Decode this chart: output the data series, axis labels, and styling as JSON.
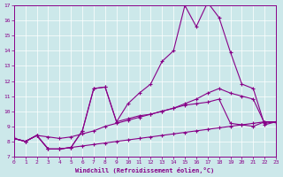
{
  "background_color": "#cce8ea",
  "line_color": "#880088",
  "xlabel": "Windchill (Refroidissement éolien,°C)",
  "xlim": [
    0,
    23
  ],
  "ylim": [
    7,
    17
  ],
  "xticks": [
    0,
    1,
    2,
    3,
    4,
    5,
    6,
    7,
    8,
    9,
    10,
    11,
    12,
    13,
    14,
    15,
    16,
    17,
    18,
    19,
    20,
    21,
    22,
    23
  ],
  "yticks": [
    7,
    8,
    9,
    10,
    11,
    12,
    13,
    14,
    15,
    16,
    17
  ],
  "series": [
    {
      "x": [
        0,
        1,
        2,
        3,
        4,
        5,
        6,
        7,
        8,
        9,
        10,
        11,
        12,
        13,
        14,
        15,
        16,
        17,
        18,
        19,
        20,
        21,
        22,
        23
      ],
      "y": [
        8.2,
        8.0,
        8.4,
        7.5,
        7.5,
        7.6,
        7.7,
        7.8,
        7.9,
        8.0,
        8.1,
        8.2,
        8.3,
        8.4,
        8.5,
        8.6,
        8.7,
        8.8,
        8.9,
        9.0,
        9.1,
        9.2,
        9.3,
        9.3
      ]
    },
    {
      "x": [
        0,
        1,
        2,
        3,
        4,
        5,
        6,
        7,
        8,
        9,
        10,
        11,
        12,
        13,
        14,
        15,
        16,
        17,
        18,
        19,
        20,
        21,
        22,
        23
      ],
      "y": [
        8.2,
        8.0,
        8.4,
        8.3,
        8.2,
        8.3,
        8.5,
        8.7,
        9.0,
        9.2,
        9.4,
        9.6,
        9.8,
        10.0,
        10.2,
        10.4,
        10.5,
        10.6,
        10.8,
        9.2,
        9.1,
        9.0,
        9.3,
        9.3
      ]
    },
    {
      "x": [
        0,
        1,
        2,
        3,
        4,
        5,
        6,
        7,
        8,
        9,
        10,
        11,
        12,
        13,
        14,
        15,
        16,
        17,
        18,
        19,
        20,
        21,
        22,
        23
      ],
      "y": [
        8.2,
        8.0,
        8.4,
        7.5,
        7.5,
        7.6,
        8.7,
        11.5,
        11.6,
        9.3,
        9.5,
        9.7,
        9.8,
        10.0,
        10.2,
        10.5,
        10.8,
        11.2,
        11.5,
        11.2,
        11.0,
        10.8,
        9.2,
        9.3
      ]
    },
    {
      "x": [
        0,
        1,
        2,
        3,
        4,
        5,
        6,
        7,
        8,
        9,
        10,
        11,
        12,
        13,
        14,
        15,
        16,
        17,
        18,
        19,
        20,
        21,
        22,
        23
      ],
      "y": [
        8.2,
        8.0,
        8.4,
        7.5,
        7.5,
        7.6,
        8.7,
        11.5,
        11.6,
        9.3,
        10.5,
        11.2,
        11.8,
        13.3,
        14.0,
        17.0,
        15.6,
        17.2,
        16.2,
        13.9,
        11.8,
        11.5,
        9.1,
        9.3
      ]
    }
  ]
}
